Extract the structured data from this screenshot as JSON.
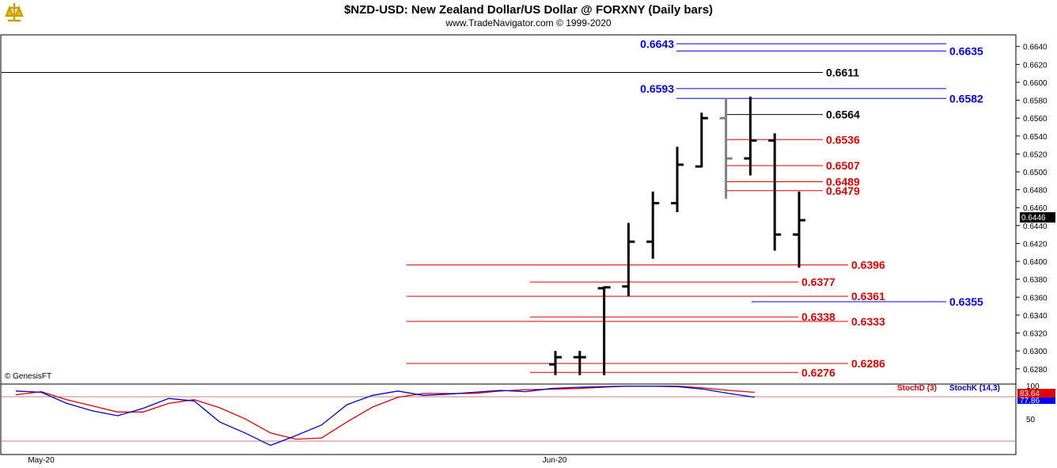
{
  "header": {
    "title": "$NZD-USD:  New Zealand Dollar/US Dollar @ FORXNY  (Daily bars)",
    "copyright": "www.TradeNavigator.com © 1999-2020",
    "watermark": "© GenesisFT"
  },
  "colors": {
    "blue": "#0000ff",
    "red": "#e00000",
    "black": "#000000",
    "gray": "#808080"
  },
  "chart_data": {
    "type": "ohlc",
    "y_range": [
      0.6263,
      0.6653
    ],
    "y_ticks": [
      "0.6280",
      "0.6300",
      "0.6320",
      "0.6340",
      "0.6360",
      "0.6380",
      "0.6400",
      "0.6420",
      "0.6440",
      "0.6460",
      "0.6480",
      "0.6500",
      "0.6520",
      "0.6540",
      "0.6560",
      "0.6580",
      "0.6600",
      "0.6620",
      "0.6640"
    ],
    "x_labels": [
      "May-20",
      "Jun-20"
    ],
    "last_price": "0.6446",
    "bars": [
      {
        "o": 0.6285,
        "h": 0.63,
        "l": 0.6273,
        "c": 0.6293,
        "color": "black"
      },
      {
        "o": 0.6293,
        "h": 0.63,
        "l": 0.6273,
        "c": 0.6293,
        "color": "black"
      },
      {
        "o": 0.637,
        "h": 0.6372,
        "l": 0.6273,
        "c": 0.6371,
        "color": "black"
      },
      {
        "o": 0.6372,
        "h": 0.6443,
        "l": 0.6361,
        "c": 0.6422,
        "color": "black"
      },
      {
        "o": 0.6422,
        "h": 0.6478,
        "l": 0.6403,
        "c": 0.6465,
        "color": "black"
      },
      {
        "o": 0.6465,
        "h": 0.6528,
        "l": 0.6455,
        "c": 0.6508,
        "color": "black"
      },
      {
        "o": 0.6506,
        "h": 0.6566,
        "l": 0.6505,
        "c": 0.656,
        "color": "black"
      },
      {
        "o": 0.656,
        "h": 0.6582,
        "l": 0.647,
        "c": 0.6515,
        "color": "gray"
      },
      {
        "o": 0.6515,
        "h": 0.6584,
        "l": 0.6496,
        "c": 0.6535,
        "color": "black"
      },
      {
        "o": 0.6535,
        "h": 0.6543,
        "l": 0.6412,
        "c": 0.643,
        "color": "black"
      },
      {
        "o": 0.643,
        "h": 0.6478,
        "l": 0.6393,
        "c": 0.6446,
        "color": "black"
      }
    ],
    "levels": [
      {
        "value": 0.6643,
        "label": "0.6643",
        "color": "blue",
        "side": "left"
      },
      {
        "value": 0.6635,
        "label": "0.6635",
        "color": "blue",
        "side": "right"
      },
      {
        "value": 0.6611,
        "label": "0.6611",
        "color": "black",
        "side": "right"
      },
      {
        "value": 0.6593,
        "label": "0.6593",
        "color": "blue",
        "side": "left"
      },
      {
        "value": 0.6582,
        "label": "0.6582",
        "color": "blue",
        "side": "right"
      },
      {
        "value": 0.6564,
        "label": "0.6564",
        "color": "black",
        "side": "right"
      },
      {
        "value": 0.6536,
        "label": "0.6536",
        "color": "red",
        "side": "right"
      },
      {
        "value": 0.6507,
        "label": "0.6507",
        "color": "red",
        "side": "right"
      },
      {
        "value": 0.6489,
        "label": "0.6489",
        "color": "red",
        "side": "right"
      },
      {
        "value": 0.6479,
        "label": "0.6479",
        "color": "red",
        "side": "right"
      },
      {
        "value": 0.6396,
        "label": "0.6396",
        "color": "red",
        "side": "right"
      },
      {
        "value": 0.6377,
        "label": "0.6377",
        "color": "red",
        "side": "right"
      },
      {
        "value": 0.6361,
        "label": "0.6361",
        "color": "red",
        "side": "right"
      },
      {
        "value": 0.6355,
        "label": "0.6355",
        "color": "blue",
        "side": "right"
      },
      {
        "value": 0.6338,
        "label": "0.6338",
        "color": "red",
        "side": "right"
      },
      {
        "value": 0.6333,
        "label": "0.6333",
        "color": "red",
        "side": "right"
      },
      {
        "value": 0.6286,
        "label": "0.6286",
        "color": "red",
        "side": "right"
      },
      {
        "value": 0.6276,
        "label": "0.6276",
        "color": "red",
        "side": "right"
      }
    ],
    "oscillator": {
      "stochd_label": "StochD (3)",
      "stochk_label": "StochK (14,3)",
      "tick_100": "100",
      "tick_50": "50",
      "stochd_value": "83.64",
      "stochk_value": "77.86",
      "y_range": [
        0,
        100
      ],
      "stochk": [
        90,
        88,
        70,
        58,
        50,
        62,
        78,
        74,
        40,
        22,
        2,
        18,
        35,
        68,
        83,
        90,
        83,
        85,
        88,
        91,
        89,
        94,
        96,
        97,
        98,
        98,
        97,
        93,
        86,
        80
      ],
      "stochd": [
        84,
        89,
        76,
        66,
        56,
        56,
        70,
        76,
        63,
        45,
        22,
        12,
        14,
        40,
        64,
        80,
        86,
        86,
        86,
        90,
        92,
        93,
        94,
        96,
        98,
        98,
        98,
        95,
        91,
        88
      ]
    }
  }
}
